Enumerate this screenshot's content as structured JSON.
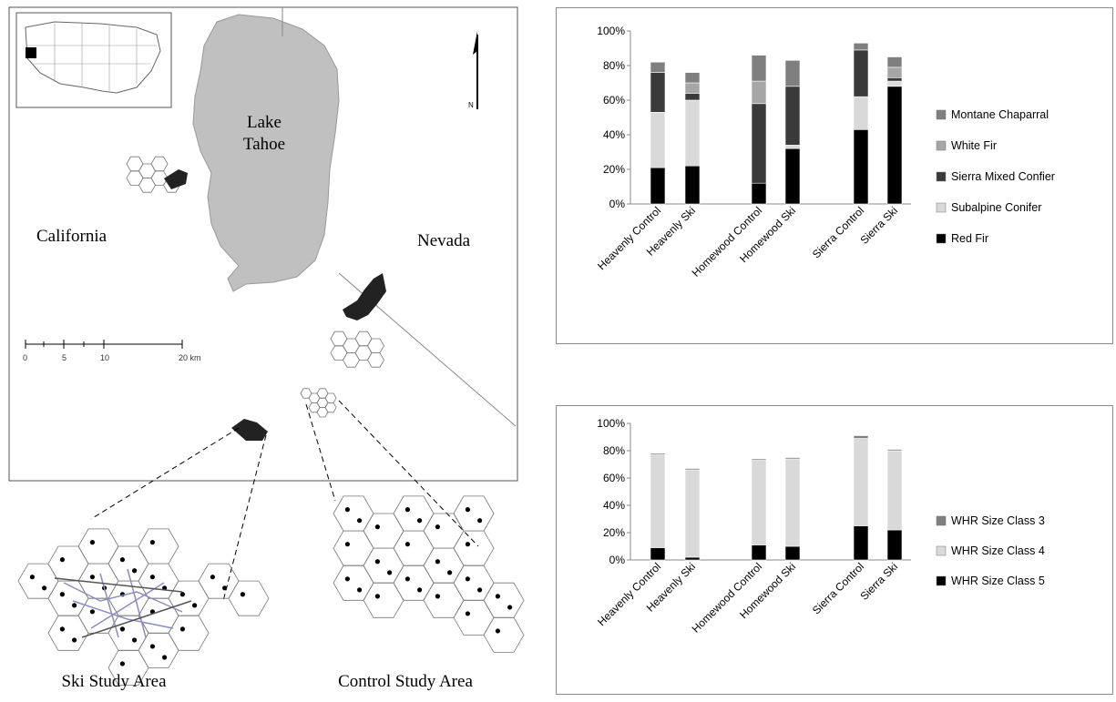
{
  "map": {
    "lake_label_1": "Lake",
    "lake_label_2": "Tahoe",
    "state_left": "California",
    "state_right": "Nevada",
    "north_label": "N",
    "scale_ticks": [
      "0",
      "5",
      "10",
      "20 km"
    ],
    "ski_area_label": "Ski Study Area",
    "control_area_label": "Control Study Area"
  },
  "chart_data": [
    {
      "type": "bar",
      "stacked": true,
      "categories": [
        "Heavenly Control",
        "Heavenly Ski",
        "Homewood Control",
        "Homewood Ski",
        "Sierra Control",
        "Sierra Ski"
      ],
      "ylim": [
        0,
        100
      ],
      "yticks": [
        "0%",
        "20%",
        "40%",
        "60%",
        "80%",
        "100%"
      ],
      "legend_position": "right",
      "series": [
        {
          "name": "Red Fir",
          "color": "#000000",
          "values": [
            21,
            22,
            12,
            32,
            43,
            68
          ]
        },
        {
          "name": "Subalpine Conifer",
          "color": "#d9d9d9",
          "values": [
            32,
            38,
            0,
            2,
            19,
            3
          ]
        },
        {
          "name": "Sierra Mixed Confier",
          "color": "#3a3a3a",
          "values": [
            23,
            4,
            46,
            34,
            27,
            2
          ]
        },
        {
          "name": "White Fir",
          "color": "#a6a6a6",
          "values": [
            0,
            6,
            13,
            0,
            0,
            6
          ]
        },
        {
          "name": "Montane Chaparral",
          "color": "#7f7f7f",
          "values": [
            6,
            6,
            15,
            15,
            4,
            6
          ]
        }
      ]
    },
    {
      "type": "bar",
      "stacked": true,
      "categories": [
        "Heavenly Control",
        "Heavenly Ski",
        "Homewood Control",
        "Homewood Ski",
        "Sierra Control",
        "Sierra Ski"
      ],
      "ylim": [
        0,
        100
      ],
      "yticks": [
        "0%",
        "20%",
        "40%",
        "60%",
        "80%",
        "100%"
      ],
      "legend_position": "right",
      "series": [
        {
          "name": "WHR Size Class 5",
          "color": "#000000",
          "values": [
            9,
            2,
            11,
            10,
            25,
            22
          ]
        },
        {
          "name": "WHR Size Class 4",
          "color": "#d9d9d9",
          "values": [
            68,
            64,
            62,
            64,
            64,
            58
          ]
        },
        {
          "name": "WHR Size Class 3",
          "color": "#7f7f7f",
          "values": [
            1,
            1,
            1,
            1,
            2,
            1
          ]
        }
      ]
    }
  ]
}
